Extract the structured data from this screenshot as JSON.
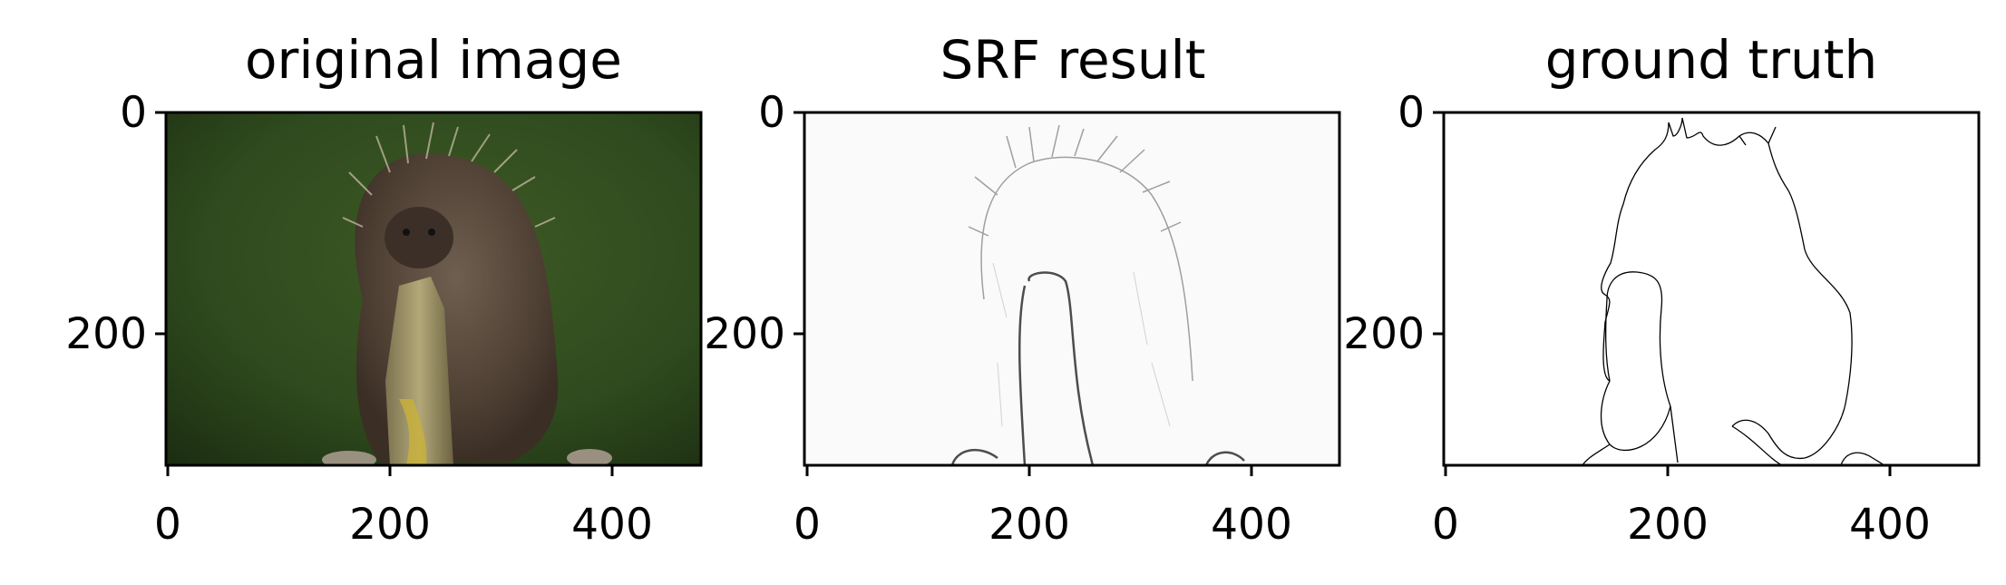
{
  "panels": [
    {
      "id": "original",
      "title": "original image",
      "xticks": [
        "0",
        "200",
        "400"
      ],
      "yticks": [
        "0",
        "200"
      ]
    },
    {
      "id": "srf",
      "title": "SRF result",
      "xticks": [
        "0",
        "200",
        "400"
      ],
      "yticks": [
        "0",
        "200"
      ]
    },
    {
      "id": "gt",
      "title": "ground truth",
      "xticks": [
        "0",
        "200",
        "400"
      ],
      "yticks": [
        "0",
        "200"
      ]
    }
  ],
  "image_extent": {
    "width": 481,
    "height": 321
  },
  "colors": {
    "photo_background": "#2f4a1e",
    "porcupine": "#5a4a3c",
    "stick": "#a89a6a",
    "edge": "#000000"
  }
}
